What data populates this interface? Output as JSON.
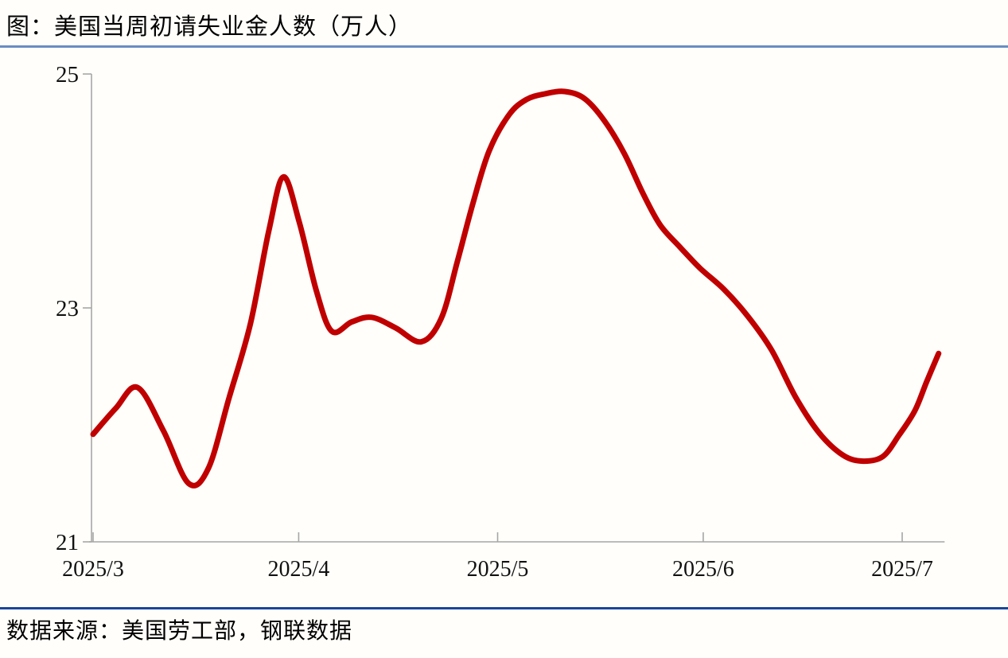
{
  "page": {
    "title": "图：美国当周初请失业金人数（万人）",
    "source": "数据来源：美国劳工部，钢联数据"
  },
  "colors": {
    "line": "#C00000",
    "axis": "#A6A6A6",
    "tick_label": "#111111",
    "top_divider": "#6A8CC3",
    "bottom_divider": "#1B459B",
    "background": "#FFFEFA"
  },
  "chart_data": {
    "type": "line",
    "title": "美国当周初请失业金人数（万人）",
    "xlabel": "",
    "ylabel": "万人",
    "ylim": [
      21,
      25
    ],
    "xlim_days": [
      0,
      128.4
    ],
    "x_unit": "days since 2025-03-01",
    "grid": false,
    "legend": "none",
    "y_ticks": [
      {
        "label": "25",
        "value": 25
      },
      {
        "label": "23",
        "value": 23
      },
      {
        "label": "21",
        "value": 21
      }
    ],
    "x_ticks": [
      {
        "label": "2025/3",
        "day": 0
      },
      {
        "label": "2025/4",
        "day": 31
      },
      {
        "label": "2025/5",
        "day": 61
      },
      {
        "label": "2025/6",
        "day": 92
      },
      {
        "label": "2025/7",
        "day": 122
      }
    ],
    "series": [
      {
        "name": "美国当周初请失业金人数",
        "color": "#C00000",
        "points": [
          [
            0,
            21.92
          ],
          [
            3.4,
            22.14
          ],
          [
            6.7,
            22.32
          ],
          [
            10.6,
            21.95
          ],
          [
            14.4,
            21.5
          ],
          [
            17.4,
            21.63
          ],
          [
            20.5,
            22.23
          ],
          [
            23.7,
            22.86
          ],
          [
            26.5,
            23.66
          ],
          [
            28.7,
            24.12
          ],
          [
            31.1,
            23.73
          ],
          [
            33.7,
            23.14
          ],
          [
            36.0,
            22.8
          ],
          [
            39.0,
            22.88
          ],
          [
            42.0,
            22.92
          ],
          [
            45.6,
            22.83
          ],
          [
            49.5,
            22.71
          ],
          [
            52.5,
            22.91
          ],
          [
            54.9,
            23.39
          ],
          [
            57.3,
            23.9
          ],
          [
            59.7,
            24.34
          ],
          [
            62.7,
            24.65
          ],
          [
            65.3,
            24.78
          ],
          [
            68.1,
            24.83
          ],
          [
            71.1,
            24.85
          ],
          [
            74.1,
            24.79
          ],
          [
            77.1,
            24.6
          ],
          [
            80.1,
            24.32
          ],
          [
            82.9,
            23.98
          ],
          [
            85.5,
            23.71
          ],
          [
            88.5,
            23.52
          ],
          [
            91.5,
            23.34
          ],
          [
            95.1,
            23.16
          ],
          [
            98.7,
            22.93
          ],
          [
            102.3,
            22.64
          ],
          [
            105.9,
            22.24
          ],
          [
            109.5,
            21.93
          ],
          [
            113.1,
            21.74
          ],
          [
            116.1,
            21.69
          ],
          [
            119.1,
            21.73
          ],
          [
            121.5,
            21.91
          ],
          [
            123.9,
            22.12
          ],
          [
            125.7,
            22.37
          ],
          [
            127.5,
            22.61
          ]
        ]
      }
    ]
  }
}
